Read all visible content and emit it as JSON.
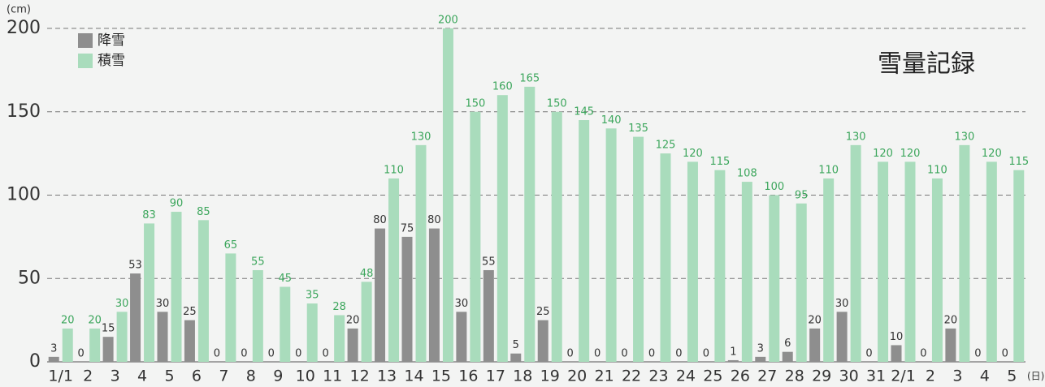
{
  "chart_data": {
    "type": "bar",
    "title": "雪量記録",
    "y_unit": "(cm)",
    "x_unit": "(日)",
    "categories": [
      "1/1",
      "2",
      "3",
      "4",
      "5",
      "6",
      "7",
      "8",
      "9",
      "10",
      "11",
      "12",
      "13",
      "14",
      "15",
      "16",
      "17",
      "18",
      "19",
      "20",
      "21",
      "22",
      "23",
      "24",
      "25",
      "26",
      "27",
      "28",
      "29",
      "30",
      "31",
      "2/1",
      "2",
      "3",
      "4",
      "5"
    ],
    "series": [
      {
        "name": "降雪",
        "color": "#8e8e8e",
        "label_color": "#333333",
        "values": [
          3,
          0,
          15,
          53,
          30,
          25,
          0,
          0,
          0,
          0,
          0,
          20,
          80,
          75,
          80,
          30,
          55,
          5,
          25,
          0,
          0,
          0,
          0,
          0,
          0,
          1,
          3,
          6,
          20,
          30,
          0,
          10,
          0,
          20,
          0,
          0
        ]
      },
      {
        "name": "積雪",
        "color": "#a9dcbc",
        "label_color": "#3ca65c",
        "values": [
          20,
          20,
          30,
          83,
          90,
          85,
          65,
          55,
          45,
          35,
          28,
          48,
          110,
          130,
          200,
          150,
          160,
          165,
          150,
          145,
          140,
          135,
          125,
          120,
          115,
          108,
          100,
          95,
          110,
          130,
          120,
          120,
          110,
          130,
          120,
          115
        ]
      }
    ],
    "ylim": [
      0,
      200
    ],
    "yticks": [
      0,
      50,
      100,
      150,
      200
    ],
    "grid": true
  }
}
